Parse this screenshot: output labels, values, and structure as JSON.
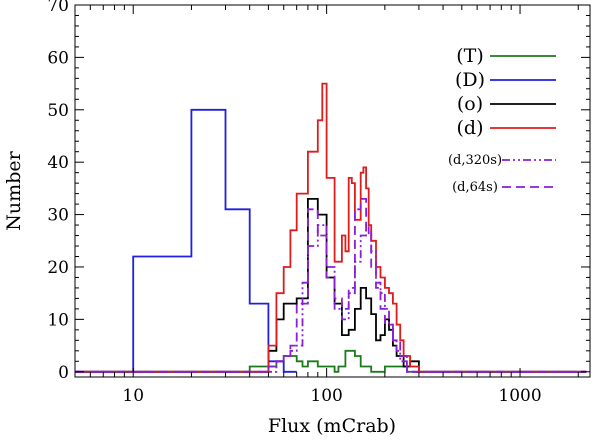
{
  "chart_data": {
    "type": "line",
    "title": "",
    "xlabel": "Flux (mCrab)",
    "ylabel": "Number",
    "xscale": "log",
    "xlim": [
      5,
      2300
    ],
    "ylim": [
      -1,
      70
    ],
    "xticks": [
      10,
      100,
      1000
    ],
    "xtick_labels": [
      "10",
      "100",
      "1000"
    ],
    "yticks": [
      0,
      10,
      20,
      30,
      40,
      50,
      60,
      70
    ],
    "ytick_labels": [
      "0",
      "10",
      "20",
      "30",
      "40",
      "50",
      "60",
      "70"
    ],
    "grid": false,
    "legend_position": "top-right",
    "series": [
      {
        "name": "(T)",
        "color": "#1c7a1c",
        "style": "solid",
        "legend_size": "large",
        "x": [
          5,
          15,
          40,
          55,
          60,
          70,
          75,
          80,
          90,
          100,
          110,
          115,
          125,
          140,
          150,
          170,
          200,
          260,
          2200
        ],
        "y": [
          0,
          0,
          1,
          2,
          3,
          2,
          1,
          2,
          1,
          1,
          0,
          1,
          4,
          3,
          1,
          0,
          1,
          0,
          0
        ]
      },
      {
        "name": "(D)",
        "color": "#1f1fe0",
        "style": "solid",
        "legend_size": "large",
        "x": [
          5,
          10,
          20,
          30,
          40,
          50,
          60,
          70
        ],
        "y": [
          0,
          22,
          50,
          31,
          13,
          2,
          0,
          0
        ]
      },
      {
        "name": "(o)",
        "color": "#000000",
        "style": "solid",
        "legend_size": "large",
        "x": [
          5,
          50,
          55,
          60,
          70,
          80,
          90,
          100,
          110,
          120,
          130,
          140,
          150,
          160,
          170,
          180,
          190,
          200,
          210,
          220,
          230,
          250,
          270,
          300,
          2200
        ],
        "y": [
          0,
          4,
          10,
          13,
          14,
          33,
          30,
          18,
          13,
          7,
          8,
          12,
          16,
          14,
          11,
          6,
          7,
          10,
          8,
          5,
          3,
          1,
          2,
          0,
          0
        ]
      },
      {
        "name": "(d)",
        "color": "#e01b1b",
        "style": "solid",
        "legend_size": "large",
        "x": [
          5,
          50,
          55,
          60,
          65,
          70,
          80,
          90,
          95,
          100,
          110,
          120,
          125,
          130,
          135,
          140,
          150,
          155,
          160,
          165,
          170,
          180,
          190,
          200,
          210,
          220,
          230,
          240,
          250,
          270,
          300,
          2200
        ],
        "y": [
          0,
          5,
          15,
          20,
          27,
          34,
          42,
          48,
          55,
          37,
          21,
          26,
          23,
          37,
          36,
          29,
          38,
          39,
          35,
          28,
          25,
          20,
          18,
          16,
          15,
          13,
          9,
          6,
          3,
          1,
          0,
          0
        ]
      },
      {
        "name": "(d,320s)",
        "color": "#8a1fd6",
        "style": "dashdotdot",
        "legend_size": "small",
        "x": [
          5,
          50,
          55,
          60,
          65,
          70,
          75,
          80,
          90,
          100,
          110,
          120,
          130,
          140,
          150,
          160,
          165,
          170,
          180,
          190,
          200,
          210,
          220,
          230,
          240,
          260,
          2200
        ],
        "y": [
          0,
          0,
          2,
          3,
          4,
          5,
          17,
          24,
          28,
          20,
          12,
          10,
          15,
          21,
          26,
          28,
          26,
          23,
          17,
          15,
          12,
          9,
          6,
          4,
          2,
          0,
          0
        ]
      },
      {
        "name": "(d,64s)",
        "color": "#8a1fd6",
        "style": "dashed",
        "legend_size": "small",
        "x": [
          5,
          50,
          55,
          60,
          65,
          70,
          80,
          90,
          100,
          110,
          120,
          130,
          140,
          150,
          160,
          170,
          180,
          190,
          200,
          220,
          240,
          260,
          2200
        ],
        "y": [
          0,
          1,
          2,
          3,
          5,
          13,
          31,
          26,
          18,
          14,
          12,
          16,
          31,
          33,
          27,
          20,
          16,
          12,
          9,
          6,
          3,
          0,
          0
        ]
      }
    ]
  }
}
